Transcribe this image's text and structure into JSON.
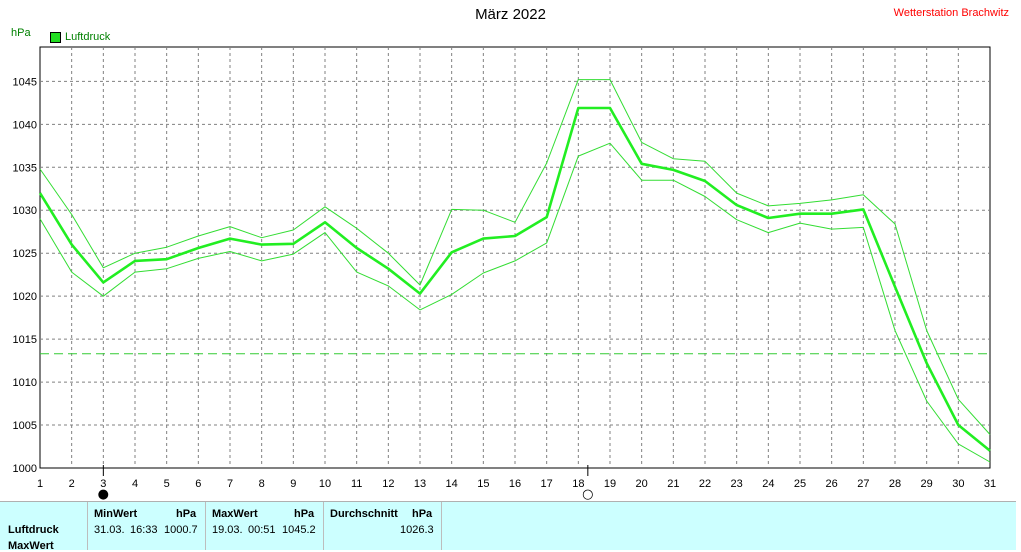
{
  "header": {
    "title": "März 2022",
    "station": "Wetterstation Brachwitz",
    "unit": "hPa"
  },
  "legend": {
    "label": "Luftdruck",
    "color": "#22dd22"
  },
  "colors": {
    "main": "#22ee22",
    "band": "#33dd33",
    "avg": "#33cc33",
    "grid": "#808080"
  },
  "chart_data": {
    "type": "line",
    "title": "März 2022",
    "ylabel": "hPa",
    "xlim": [
      1,
      31
    ],
    "ylim": [
      1000,
      1049
    ],
    "yticks": [
      1000,
      1005,
      1010,
      1015,
      1020,
      1025,
      1030,
      1035,
      1040,
      1045
    ],
    "xticks": [
      1,
      2,
      3,
      4,
      5,
      6,
      7,
      8,
      9,
      10,
      11,
      12,
      13,
      14,
      15,
      16,
      17,
      18,
      19,
      20,
      21,
      22,
      23,
      24,
      25,
      26,
      27,
      28,
      29,
      30,
      31
    ],
    "grid": true,
    "average": 1013.3,
    "x": [
      1,
      2,
      3,
      4,
      5,
      6,
      7,
      8,
      9,
      10,
      11,
      12,
      13,
      14,
      15,
      16,
      17,
      18,
      19,
      20,
      21,
      22,
      23,
      24,
      25,
      26,
      27,
      28,
      29,
      30,
      31
    ],
    "series": [
      {
        "name": "Luftdruck",
        "role": "mean",
        "values": [
          1032.0,
          1026.0,
          1021.6,
          1024.1,
          1024.3,
          1025.6,
          1026.7,
          1026.0,
          1026.1,
          1028.6,
          1025.6,
          1023.2,
          1020.3,
          1025.1,
          1026.7,
          1027.0,
          1029.2,
          1041.9,
          1041.9,
          1035.4,
          1034.7,
          1033.4,
          1030.6,
          1029.1,
          1029.6,
          1029.6,
          1030.1,
          1021.1,
          1012.2,
          1005.0,
          1002.0
        ]
      },
      {
        "role": "max",
        "values": [
          1034.8,
          1029.5,
          1023.3,
          1025.0,
          1025.7,
          1027.0,
          1028.1,
          1026.8,
          1027.7,
          1030.4,
          1027.9,
          1025.0,
          1021.3,
          1030.1,
          1030.0,
          1028.6,
          1035.5,
          1045.2,
          1045.2,
          1037.9,
          1036.0,
          1035.7,
          1032.0,
          1030.5,
          1030.8,
          1031.2,
          1031.8,
          1028.4,
          1016.0,
          1008.0,
          1003.9
        ]
      },
      {
        "role": "min",
        "values": [
          1029.0,
          1022.8,
          1020.0,
          1022.8,
          1023.2,
          1024.4,
          1025.2,
          1024.1,
          1024.9,
          1027.4,
          1022.8,
          1021.2,
          1018.4,
          1020.2,
          1022.7,
          1024.1,
          1026.2,
          1036.3,
          1037.8,
          1033.5,
          1033.5,
          1031.6,
          1028.9,
          1027.4,
          1028.5,
          1027.8,
          1028.0,
          1016.0,
          1007.8,
          1002.8,
          1000.7
        ]
      }
    ],
    "markers": [
      {
        "x": 3,
        "symbol": "●"
      },
      {
        "x": 18.3,
        "symbol": "○"
      }
    ]
  },
  "stats": {
    "rows": [
      "Luftdruck",
      "MaxWert"
    ],
    "min": {
      "header": "MinWert",
      "unit": "hPa",
      "date": "31.03.",
      "time": "16:33",
      "value": "1000.7"
    },
    "max": {
      "header": "MaxWert",
      "unit": "hPa",
      "date": "19.03.",
      "time": "00:51",
      "value": "1045.2"
    },
    "avg": {
      "header": "Durchschnitt",
      "unit": "hPa",
      "value": "1026.3"
    }
  }
}
